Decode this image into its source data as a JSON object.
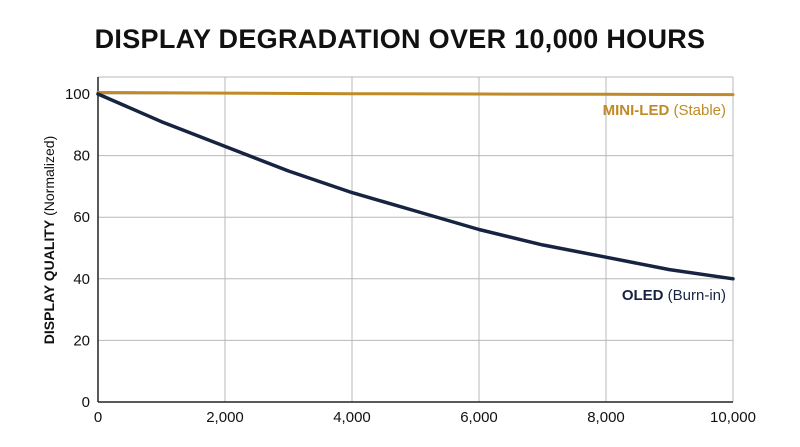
{
  "chart_data": {
    "type": "line",
    "title": "DISPLAY DEGRADATION OVER 10,000 HOURS",
    "xlabel": "",
    "ylabel_bold": "DISPLAY QUALITY",
    "ylabel_rest": " (Normalized)",
    "xlim": [
      0,
      10000
    ],
    "ylim": [
      0,
      100
    ],
    "x_ticks": [
      0,
      2000,
      4000,
      6000,
      8000,
      10000
    ],
    "x_tick_labels": [
      "0",
      "2,000",
      "4,000",
      "6,000",
      "8,000",
      "10,000"
    ],
    "y_ticks": [
      0,
      20,
      40,
      60,
      80,
      100
    ],
    "y_tick_labels": [
      "0",
      "20",
      "40",
      "60",
      "80",
      "100"
    ],
    "grid": true,
    "series": [
      {
        "name_bold": "MINI-LED",
        "name_rest": " (Stable)",
        "color": "#c08a26",
        "x": [
          0,
          2000,
          4000,
          6000,
          8000,
          10000
        ],
        "y": [
          100.5,
          100.3,
          100.1,
          100.0,
          99.9,
          99.8
        ]
      },
      {
        "name_bold": "OLED",
        "name_rest": " (Burn-in)",
        "color": "#172441",
        "x": [
          0,
          1000,
          2000,
          3000,
          4000,
          5000,
          6000,
          7000,
          8000,
          9000,
          10000
        ],
        "y": [
          100,
          91,
          83,
          75,
          68,
          62,
          56,
          51,
          47,
          43,
          40
        ]
      }
    ]
  }
}
